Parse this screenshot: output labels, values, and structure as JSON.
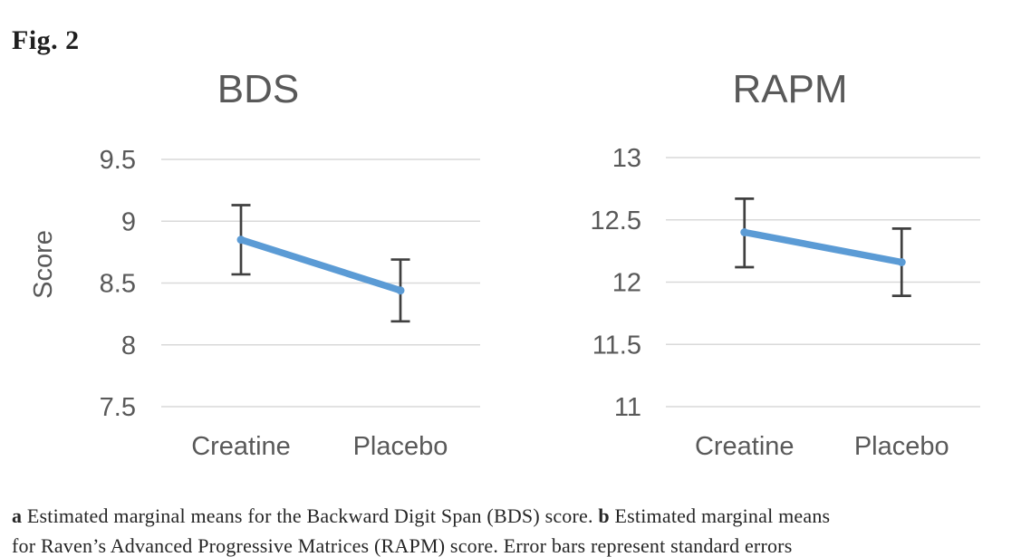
{
  "figure_label": "Fig. 2",
  "caption": {
    "line1_bold_a": "a",
    "line1_after_a": " Estimated marginal means for the Backward Digit Span (BDS) score. ",
    "line1_bold_b": "b",
    "line1_after_b": " Estimated marginal means",
    "line2": "for Raven’s Advanced Progressive Matrices (RAPM) score. Error bars represent standard errors"
  },
  "colors": {
    "line": "#5b9bd5",
    "marker": "#5b9bd5",
    "error_bar": "#404040",
    "gridline": "#d9d9d9",
    "axis_text": "#595959",
    "title_text": "#595959",
    "caption_text": "#262626"
  },
  "chart_data": [
    {
      "type": "line",
      "title": "BDS",
      "ylabel": "Score",
      "xlabel": "",
      "categories": [
        "Creatine",
        "Placebo"
      ],
      "values": [
        8.85,
        8.44
      ],
      "error_upper": [
        9.13,
        8.69
      ],
      "error_lower": [
        8.57,
        8.19
      ],
      "ylim": [
        7.5,
        9.5
      ],
      "yticks": [
        "9.5",
        "9",
        "8.5",
        "8",
        "7.5"
      ],
      "grid": true,
      "legend_position": "none",
      "error_bars_meaning": "standard errors"
    },
    {
      "type": "line",
      "title": "RAPM",
      "ylabel": "",
      "xlabel": "",
      "categories": [
        "Creatine",
        "Placebo"
      ],
      "values": [
        12.4,
        12.16
      ],
      "error_upper": [
        12.67,
        12.43
      ],
      "error_lower": [
        12.12,
        11.89
      ],
      "ylim": [
        11,
        13
      ],
      "yticks": [
        "13",
        "12.5",
        "12",
        "11.5",
        "11"
      ],
      "grid": true,
      "legend_position": "none",
      "error_bars_meaning": "standard errors"
    }
  ]
}
